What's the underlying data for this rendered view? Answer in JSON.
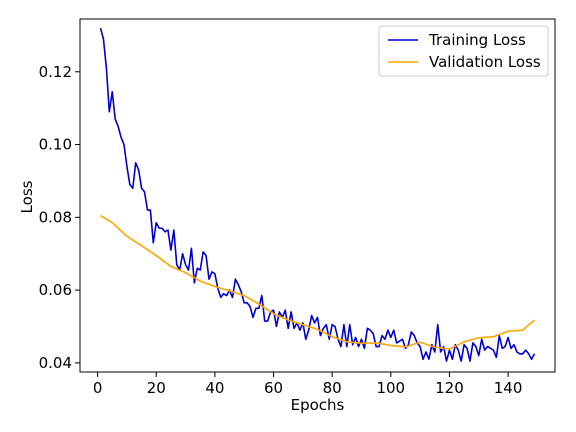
{
  "chart_data": {
    "type": "line",
    "title": "",
    "xlabel": "Epochs",
    "ylabel": "Loss",
    "xlim": [
      -6,
      156
    ],
    "ylim": [
      0.0375,
      0.1345
    ],
    "xticks": [
      0,
      20,
      40,
      60,
      80,
      100,
      120,
      140
    ],
    "yticks": [
      0.04,
      0.06,
      0.08,
      0.1,
      0.12
    ],
    "ytick_labels": [
      "0.04",
      "0.06",
      "0.08",
      "0.10",
      "0.12"
    ],
    "legend_position": "top-right",
    "grid": false,
    "series": [
      {
        "name": "Training Loss",
        "color": "#0000cc",
        "x": [
          1,
          2,
          3,
          4,
          5,
          6,
          7,
          8,
          9,
          10,
          11,
          12,
          13,
          14,
          15,
          16,
          17,
          18,
          19,
          20,
          21,
          22,
          23,
          24,
          25,
          26,
          27,
          28,
          29,
          30,
          31,
          32,
          33,
          34,
          35,
          36,
          37,
          38,
          39,
          40,
          41,
          42,
          43,
          44,
          45,
          46,
          47,
          48,
          49,
          50,
          51,
          52,
          53,
          54,
          55,
          56,
          57,
          58,
          59,
          60,
          61,
          62,
          63,
          64,
          65,
          66,
          67,
          68,
          69,
          70,
          71,
          72,
          73,
          74,
          75,
          76,
          77,
          78,
          79,
          80,
          81,
          82,
          83,
          84,
          85,
          86,
          87,
          88,
          89,
          90,
          91,
          92,
          93,
          94,
          95,
          96,
          97,
          98,
          99,
          100,
          101,
          102,
          103,
          104,
          105,
          106,
          107,
          108,
          109,
          110,
          111,
          112,
          113,
          114,
          115,
          116,
          117,
          118,
          119,
          120,
          121,
          122,
          123,
          124,
          125,
          126,
          127,
          128,
          129,
          130,
          131,
          132,
          133,
          134,
          135,
          136,
          137,
          138,
          139,
          140,
          141,
          142,
          143,
          144,
          145,
          146,
          147,
          148,
          149
        ],
        "y": [
          0.132,
          0.129,
          0.121,
          0.109,
          0.1145,
          0.107,
          0.105,
          0.102,
          0.1,
          0.094,
          0.089,
          0.088,
          0.095,
          0.093,
          0.088,
          0.087,
          0.082,
          0.082,
          0.073,
          0.0785,
          0.077,
          0.077,
          0.076,
          0.0765,
          0.071,
          0.0765,
          0.067,
          0.0655,
          0.07,
          0.067,
          0.0655,
          0.0715,
          0.062,
          0.066,
          0.0655,
          0.0705,
          0.0695,
          0.063,
          0.065,
          0.0645,
          0.0605,
          0.058,
          0.059,
          0.0585,
          0.06,
          0.058,
          0.063,
          0.0615,
          0.0595,
          0.0565,
          0.0565,
          0.0555,
          0.0525,
          0.055,
          0.055,
          0.0585,
          0.0515,
          0.0515,
          0.054,
          0.0545,
          0.05,
          0.054,
          0.0525,
          0.0545,
          0.0495,
          0.054,
          0.0495,
          0.051,
          0.049,
          0.051,
          0.0465,
          0.049,
          0.053,
          0.051,
          0.0525,
          0.0475,
          0.0495,
          0.0505,
          0.0465,
          0.0505,
          0.05,
          0.0465,
          0.0445,
          0.0505,
          0.0445,
          0.0505,
          0.045,
          0.047,
          0.0445,
          0.0465,
          0.044,
          0.0495,
          0.049,
          0.048,
          0.0445,
          0.0445,
          0.0475,
          0.0465,
          0.049,
          0.047,
          0.049,
          0.0455,
          0.046,
          0.0465,
          0.044,
          0.045,
          0.0485,
          0.0475,
          0.0455,
          0.0445,
          0.041,
          0.043,
          0.041,
          0.045,
          0.043,
          0.0505,
          0.043,
          0.0445,
          0.0405,
          0.0435,
          0.041,
          0.045,
          0.0435,
          0.0405,
          0.045,
          0.044,
          0.0405,
          0.0455,
          0.0445,
          0.042,
          0.0465,
          0.0435,
          0.0445,
          0.044,
          0.0435,
          0.0415,
          0.0475,
          0.044,
          0.0445,
          0.047,
          0.044,
          0.045,
          0.043,
          0.0425,
          0.0425,
          0.0435,
          0.0425,
          0.041,
          0.0425
        ]
      },
      {
        "name": "Validation Loss",
        "color": "#ffa500",
        "x": [
          1,
          5,
          10,
          15,
          20,
          25,
          30,
          35,
          40,
          45,
          50,
          55,
          60,
          65,
          70,
          75,
          80,
          85,
          90,
          95,
          100,
          105,
          110,
          115,
          120,
          125,
          130,
          135,
          140,
          145,
          149
        ],
        "y": [
          0.0805,
          0.0785,
          0.0748,
          0.0722,
          0.0695,
          0.0665,
          0.0648,
          0.0625,
          0.061,
          0.0598,
          0.0585,
          0.0562,
          0.0535,
          0.0518,
          0.0505,
          0.0492,
          0.0472,
          0.0458,
          0.0454,
          0.0455,
          0.0448,
          0.0444,
          0.0457,
          0.0443,
          0.0438,
          0.0458,
          0.0469,
          0.0472,
          0.0487,
          0.049,
          0.0518
        ]
      }
    ]
  }
}
